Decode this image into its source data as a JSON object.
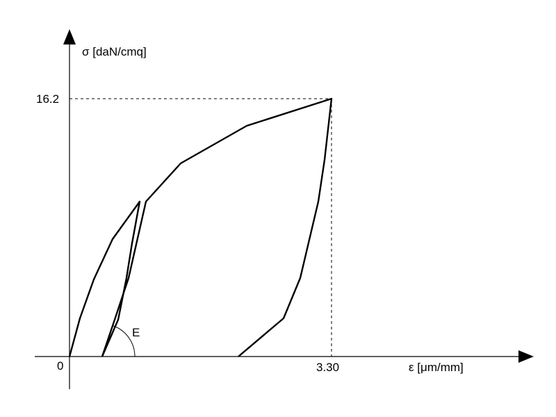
{
  "y_axis_label": "σ [daN/cmq]",
  "x_axis_label": "ε [μm/mm]",
  "origin_label": "0",
  "peak_stress_label": "16.2",
  "peak_strain_label": "3.30",
  "modulus_label": "E"
}
